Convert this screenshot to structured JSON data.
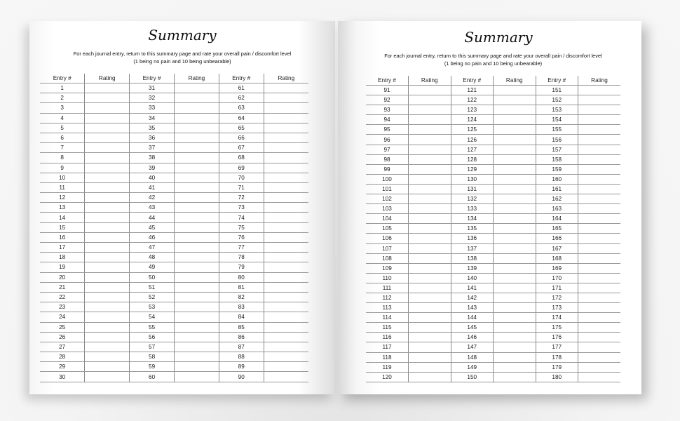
{
  "pages": [
    {
      "title": "Summary",
      "instruction_line1": "For each journal entry, return to this summary page and rate your overall pain / discomfort level",
      "instruction_line2": "(1 being no pain and 10 being unbearable)",
      "headers": [
        "Entry #",
        "Rating",
        "Entry #",
        "Rating",
        "Entry #",
        "Rating"
      ],
      "entry_ranges": [
        [
          1,
          30
        ],
        [
          31,
          60
        ],
        [
          61,
          90
        ]
      ],
      "ratings": ""
    },
    {
      "title": "Summary",
      "instruction_line1": "For each journal entry, return to this summary page and rate your overall pain / discomfort level",
      "instruction_line2": "(1 being no pain and 10 being unbearable)",
      "headers": [
        "Entry #",
        "Rating",
        "Entry #",
        "Rating",
        "Entry #",
        "Rating"
      ],
      "entry_ranges": [
        [
          91,
          120
        ],
        [
          121,
          150
        ],
        [
          151,
          180
        ]
      ],
      "ratings": ""
    }
  ]
}
